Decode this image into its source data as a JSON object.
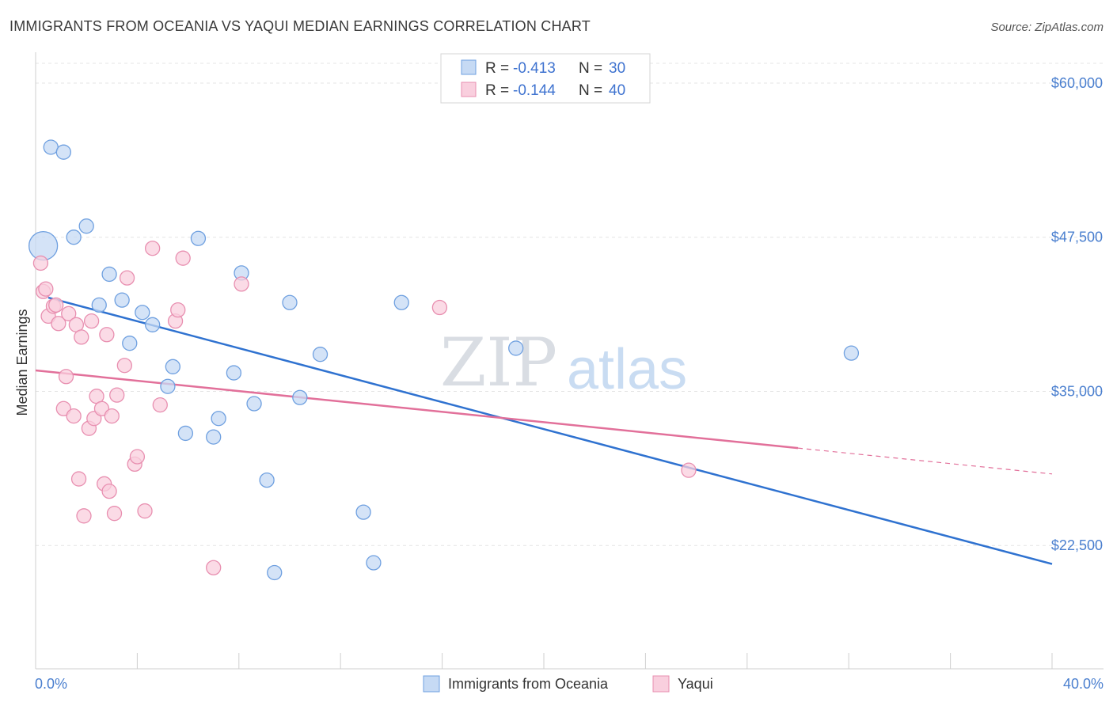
{
  "chart_data": {
    "type": "scatter",
    "title": "IMMIGRANTS FROM OCEANIA VS YAQUI MEDIAN EARNINGS CORRELATION CHART",
    "source": "Source: ZipAtlas.com",
    "ylabel": "Median Earnings",
    "xlim": [
      0,
      40
    ],
    "ylim": [
      12500,
      62500
    ],
    "y_ticks": [
      {
        "value": 60000,
        "label": "$60,000"
      },
      {
        "value": 47500,
        "label": "$47,500"
      },
      {
        "value": 35000,
        "label": "$35,000"
      },
      {
        "value": 22500,
        "label": "$22,500"
      }
    ],
    "x_tick_labels": {
      "min": "0.0%",
      "max": "40.0%"
    },
    "watermark": {
      "left": "ZIP",
      "right": "atlas"
    },
    "legend": {
      "rows": [
        {
          "r_label": "R = ",
          "r_value": "-0.413",
          "n_label": "N = ",
          "n_value": "30"
        },
        {
          "r_label": "R = ",
          "r_value": "-0.144",
          "n_label": "N = ",
          "n_value": "40"
        }
      ]
    },
    "series": [
      {
        "name": "Immigrants from Oceania",
        "color": "#6fa0e0",
        "fill": "#c6daf4",
        "line_color": "#2f72d0",
        "trend": {
          "x0": 0.5,
          "y0": 42600,
          "x1": 40,
          "y1": 21000,
          "dashed_from": null
        },
        "points": [
          {
            "x": 0.3,
            "y": 46800,
            "big": true
          },
          {
            "x": 0.6,
            "y": 54800
          },
          {
            "x": 1.1,
            "y": 54400
          },
          {
            "x": 1.5,
            "y": 47500
          },
          {
            "x": 2.0,
            "y": 48400
          },
          {
            "x": 2.5,
            "y": 42000
          },
          {
            "x": 2.9,
            "y": 44500
          },
          {
            "x": 3.4,
            "y": 42400
          },
          {
            "x": 3.7,
            "y": 38900
          },
          {
            "x": 4.2,
            "y": 41400
          },
          {
            "x": 4.6,
            "y": 40400
          },
          {
            "x": 5.2,
            "y": 35400
          },
          {
            "x": 5.4,
            "y": 37000
          },
          {
            "x": 5.9,
            "y": 31600
          },
          {
            "x": 6.4,
            "y": 47400
          },
          {
            "x": 7.0,
            "y": 31300
          },
          {
            "x": 7.2,
            "y": 32800
          },
          {
            "x": 7.8,
            "y": 36500
          },
          {
            "x": 8.1,
            "y": 44600
          },
          {
            "x": 8.6,
            "y": 34000
          },
          {
            "x": 9.1,
            "y": 27800
          },
          {
            "x": 9.4,
            "y": 20300
          },
          {
            "x": 10.0,
            "y": 42200
          },
          {
            "x": 10.4,
            "y": 34500
          },
          {
            "x": 11.2,
            "y": 38000
          },
          {
            "x": 12.9,
            "y": 25200
          },
          {
            "x": 13.3,
            "y": 21100
          },
          {
            "x": 14.4,
            "y": 42200
          },
          {
            "x": 18.9,
            "y": 38500
          },
          {
            "x": 32.1,
            "y": 38100
          }
        ]
      },
      {
        "name": "Yaqui",
        "color": "#e88fb0",
        "fill": "#f9cfde",
        "line_color": "#e2709a",
        "trend": {
          "x0": 0,
          "y0": 36700,
          "x1": 40,
          "y1": 28300,
          "dashed_from": 30
        },
        "points": [
          {
            "x": 0.2,
            "y": 45400
          },
          {
            "x": 0.3,
            "y": 43100
          },
          {
            "x": 0.4,
            "y": 43300
          },
          {
            "x": 0.5,
            "y": 41100
          },
          {
            "x": 0.7,
            "y": 41900
          },
          {
            "x": 0.8,
            "y": 42000
          },
          {
            "x": 0.9,
            "y": 40500
          },
          {
            "x": 1.2,
            "y": 36200
          },
          {
            "x": 1.1,
            "y": 33600
          },
          {
            "x": 1.3,
            "y": 41300
          },
          {
            "x": 1.5,
            "y": 33000
          },
          {
            "x": 1.6,
            "y": 40400
          },
          {
            "x": 1.7,
            "y": 27900
          },
          {
            "x": 1.8,
            "y": 39400
          },
          {
            "x": 1.9,
            "y": 24900
          },
          {
            "x": 2.1,
            "y": 32000
          },
          {
            "x": 2.2,
            "y": 40700
          },
          {
            "x": 2.3,
            "y": 32800
          },
          {
            "x": 2.4,
            "y": 34600
          },
          {
            "x": 2.6,
            "y": 33600
          },
          {
            "x": 2.7,
            "y": 27500
          },
          {
            "x": 2.8,
            "y": 39600
          },
          {
            "x": 2.9,
            "y": 26900
          },
          {
            "x": 3.0,
            "y": 33000
          },
          {
            "x": 3.1,
            "y": 25100
          },
          {
            "x": 3.2,
            "y": 34700
          },
          {
            "x": 3.5,
            "y": 37100
          },
          {
            "x": 3.6,
            "y": 44200
          },
          {
            "x": 3.9,
            "y": 29100
          },
          {
            "x": 4.0,
            "y": 29700
          },
          {
            "x": 4.3,
            "y": 25300
          },
          {
            "x": 4.6,
            "y": 46600
          },
          {
            "x": 4.9,
            "y": 33900
          },
          {
            "x": 5.5,
            "y": 40700
          },
          {
            "x": 5.6,
            "y": 41600
          },
          {
            "x": 5.8,
            "y": 45800
          },
          {
            "x": 7.0,
            "y": 20700
          },
          {
            "x": 8.1,
            "y": 43700
          },
          {
            "x": 15.9,
            "y": 41800
          },
          {
            "x": 25.7,
            "y": 28600
          }
        ]
      }
    ]
  }
}
